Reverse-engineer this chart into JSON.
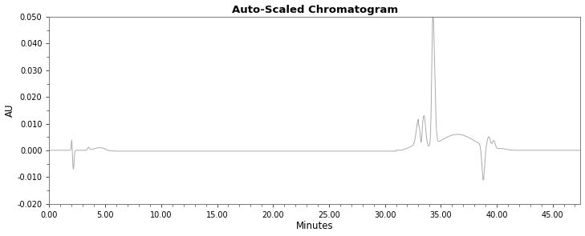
{
  "title": "Auto-Scaled Chromatogram",
  "xlabel": "Minutes",
  "ylabel": "AU",
  "xlim": [
    0.0,
    47.5
  ],
  "ylim": [
    -0.02,
    0.05
  ],
  "yticks": [
    -0.02,
    -0.01,
    0.0,
    0.01,
    0.02,
    0.03,
    0.04,
    0.05
  ],
  "xticks": [
    0.0,
    5.0,
    10.0,
    15.0,
    20.0,
    25.0,
    30.0,
    35.0,
    40.0,
    45.0
  ],
  "line_color": "#aaaaaa",
  "background_color": "#ffffff",
  "line_width": 0.7,
  "figsize": [
    7.29,
    2.95
  ],
  "dpi": 100
}
